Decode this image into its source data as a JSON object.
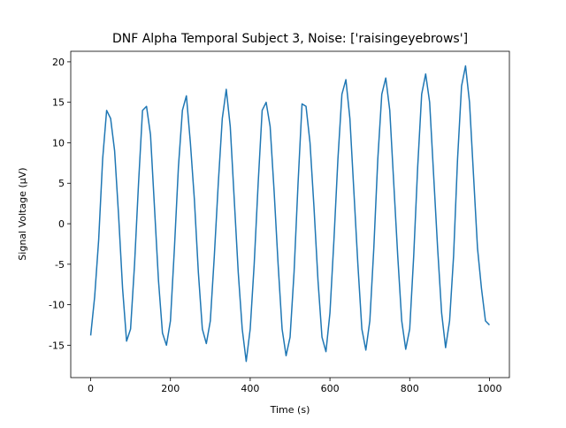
{
  "chart_data": {
    "type": "line",
    "title": "DNF Alpha Temporal Subject 3, Noise: ['raisingeyebrows']",
    "x_label": "Time (s)",
    "y_label": "Signal Voltage (μV)",
    "x": [
      0,
      10,
      20,
      30,
      40,
      50,
      60,
      70,
      80,
      90,
      100,
      110,
      120,
      130,
      140,
      150,
      160,
      170,
      180,
      190,
      200,
      210,
      220,
      230,
      240,
      250,
      260,
      270,
      280,
      290,
      300,
      310,
      320,
      330,
      340,
      350,
      360,
      370,
      380,
      390,
      400,
      410,
      420,
      430,
      440,
      450,
      460,
      470,
      480,
      490,
      500,
      510,
      520,
      530,
      540,
      550,
      560,
      570,
      580,
      590,
      600,
      610,
      620,
      630,
      640,
      650,
      660,
      670,
      680,
      690,
      700,
      710,
      720,
      730,
      740,
      750,
      760,
      770,
      780,
      790,
      800,
      810,
      820,
      830,
      840,
      850,
      860,
      870,
      880,
      890,
      900,
      910,
      920,
      930,
      940,
      950,
      960,
      970,
      980,
      990,
      1000
    ],
    "series": [
      {
        "name": "signal",
        "color": "#1f77b4",
        "values": [
          -13.8,
          -9,
          -2,
          8,
          14,
          13,
          9,
          1,
          -8,
          -14.5,
          -13,
          -5,
          5,
          14,
          14.5,
          11,
          2,
          -7,
          -13.5,
          -15,
          -12,
          -3,
          7,
          14,
          15.8,
          10,
          3,
          -6,
          -13,
          -14.8,
          -12,
          -4,
          5,
          13,
          16.6,
          12,
          3,
          -6,
          -13,
          -17,
          -13,
          -5,
          5,
          14,
          15,
          12,
          4,
          -5,
          -13,
          -16.3,
          -14,
          -6,
          5,
          14.8,
          14.5,
          10,
          2,
          -7,
          -14,
          -15.8,
          -11,
          -2,
          8,
          16,
          17.8,
          13,
          4,
          -5,
          -13,
          -15.6,
          -12,
          -3,
          8,
          16,
          18,
          14,
          5,
          -4,
          -12,
          -15.5,
          -13,
          -4,
          7,
          16,
          18.5,
          15,
          6,
          -3,
          -11,
          -15.3,
          -12,
          -4,
          8,
          17,
          19.5,
          15,
          6,
          -3,
          -8,
          -12,
          -12.5
        ]
      }
    ],
    "xlim": [
      -50,
      1050
    ],
    "ylim": [
      -19,
      21.3
    ],
    "xticks": [
      0,
      200,
      400,
      600,
      800,
      1000
    ],
    "yticks": [
      -15,
      -10,
      -5,
      0,
      5,
      10,
      15,
      20
    ]
  }
}
